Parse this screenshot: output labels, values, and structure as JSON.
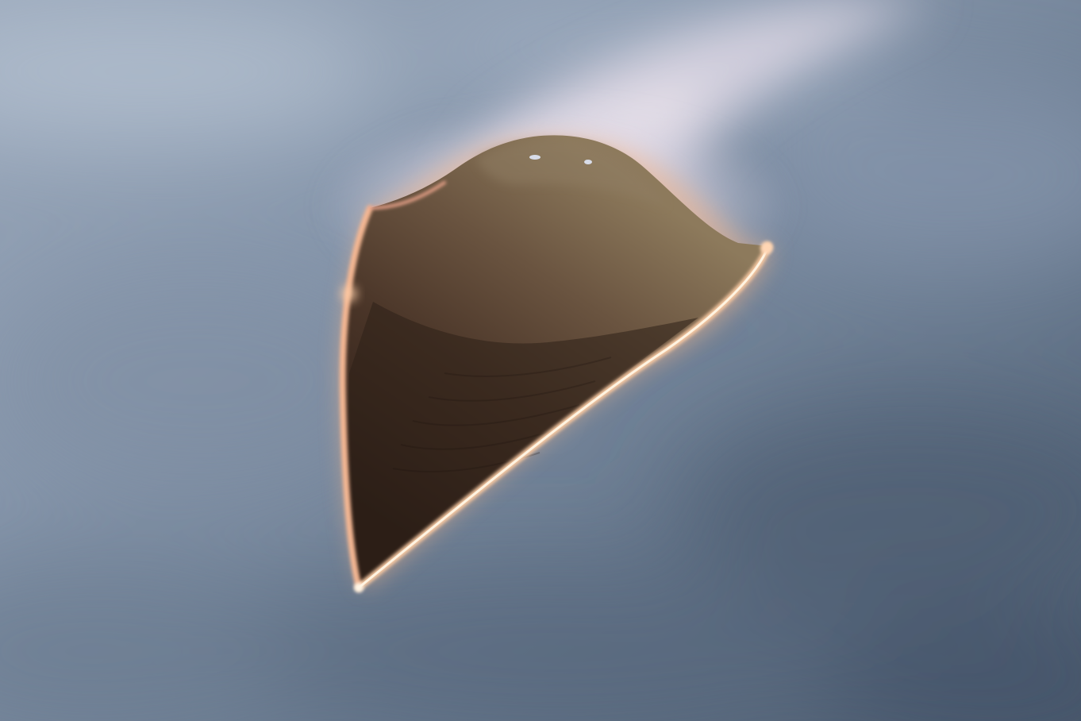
{
  "image": {
    "subject": "hypersonic-glide-vehicle",
    "colors": {
      "sky_light": "#a7b4c6",
      "sky_mid": "#7b8ba0",
      "sky_dark": "#4a5a6d",
      "hull_dark": "#2e2018",
      "hull_mid": "#5a4433",
      "hull_highlight": "#8a7658",
      "glow_hot": "#fff2d8",
      "glow_orange": "#f4a673",
      "plasma_haze": "#efe4ee"
    }
  }
}
